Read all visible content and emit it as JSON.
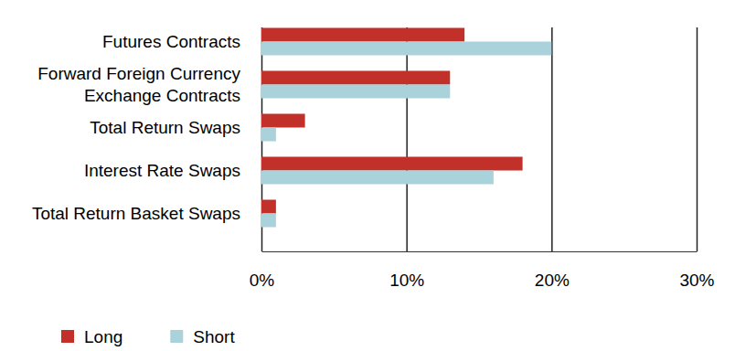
{
  "chart_data": {
    "type": "bar",
    "orientation": "horizontal",
    "categories": [
      "Futures Contracts",
      "Forward Foreign Currency Exchange Contracts",
      "Total Return Swaps",
      "Interest Rate Swaps",
      "Total Return Basket Swaps"
    ],
    "series": [
      {
        "name": "Long",
        "color": "#c1312a",
        "values": [
          14,
          13,
          3,
          18,
          1
        ]
      },
      {
        "name": "Short",
        "color": "#a9d2da",
        "values": [
          20,
          13,
          1,
          16,
          1
        ]
      }
    ],
    "xlim": [
      0,
      30
    ],
    "xticks": [
      {
        "value": 0,
        "label": "0%"
      },
      {
        "value": 10,
        "label": "10%"
      },
      {
        "value": 20,
        "label": "20%"
      },
      {
        "value": 30,
        "label": "30%"
      }
    ],
    "grid": true,
    "legend": "bottom-left"
  }
}
